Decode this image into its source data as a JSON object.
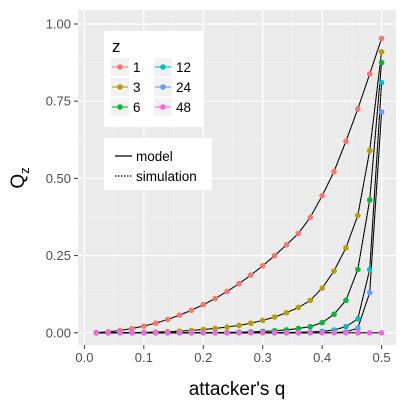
{
  "chart_data": {
    "type": "line",
    "xlabel": "attacker's q",
    "ylabel": "Q",
    "ylabel_subscript": "z",
    "xlim": [
      0.0,
      0.5
    ],
    "ylim": [
      0.0,
      1.0
    ],
    "x_ticks": [
      0.0,
      0.1,
      0.2,
      0.3,
      0.4,
      0.5
    ],
    "x_tick_labels": [
      "0.0",
      "0.1",
      "0.2",
      "0.3",
      "0.4",
      "0.5"
    ],
    "y_ticks": [
      0.0,
      0.25,
      0.5,
      0.75,
      1.0
    ],
    "y_tick_labels": [
      "0.00",
      "0.25",
      "0.50",
      "0.75",
      "1.00"
    ],
    "grid": true,
    "panel_background": "#ebebeb",
    "legend_color": {
      "title": "z",
      "placement": "top-left",
      "entries": [
        "1",
        "3",
        "6",
        "12",
        "24",
        "48"
      ]
    },
    "legend_linetype": {
      "placement": "left",
      "entries": [
        {
          "label": "model",
          "style": "solid"
        },
        {
          "label": "simulation",
          "style": "dotted"
        }
      ]
    },
    "x": [
      0.02,
      0.04,
      0.06,
      0.08,
      0.1,
      0.12,
      0.14,
      0.16,
      0.18,
      0.2,
      0.22,
      0.24,
      0.26,
      0.28,
      0.3,
      0.32,
      0.34,
      0.36,
      0.38,
      0.4,
      0.42,
      0.44,
      0.46,
      0.48,
      0.5
    ],
    "series": [
      {
        "name": "1",
        "color": "#F8766D",
        "values": [
          0.0008,
          0.0033,
          0.0076,
          0.0138,
          0.0216,
          0.0312,
          0.043,
          0.057,
          0.073,
          0.091,
          0.111,
          0.134,
          0.159,
          0.187,
          0.217,
          0.25,
          0.285,
          0.322,
          0.374,
          0.444,
          0.522,
          0.62,
          0.725,
          0.838,
          0.953
        ]
      },
      {
        "name": "3",
        "color": "#B79F00",
        "values": [
          0.0,
          0.0,
          0.0002,
          0.0005,
          0.0012,
          0.0022,
          0.0036,
          0.0054,
          0.0078,
          0.0107,
          0.0143,
          0.0185,
          0.024,
          0.031,
          0.04,
          0.051,
          0.065,
          0.082,
          0.105,
          0.145,
          0.2,
          0.275,
          0.38,
          0.59,
          0.91
        ]
      },
      {
        "name": "6",
        "color": "#00BA38",
        "values": [
          0.0,
          0.0,
          0.0,
          0.0,
          0.0,
          0.0,
          0.0,
          0.0001,
          0.0002,
          0.0004,
          0.0007,
          0.0012,
          0.002,
          0.003,
          0.0045,
          0.0065,
          0.0095,
          0.014,
          0.02,
          0.033,
          0.06,
          0.105,
          0.205,
          0.43,
          0.875
        ]
      },
      {
        "name": "12",
        "color": "#00BFC4",
        "values": [
          0.0,
          0.0,
          0.0,
          0.0,
          0.0,
          0.0,
          0.0,
          0.0,
          0.0,
          0.0,
          0.0,
          0.0,
          0.0001,
          0.0002,
          0.0004,
          0.0006,
          0.001,
          0.0016,
          0.0026,
          0.0045,
          0.009,
          0.02,
          0.045,
          0.205,
          0.81
        ]
      },
      {
        "name": "24",
        "color": "#619CFF",
        "values": [
          0.0,
          0.0,
          0.0,
          0.0,
          0.0,
          0.0,
          0.0,
          0.0,
          0.0,
          0.0,
          0.0,
          0.0,
          0.0,
          0.0,
          0.0,
          0.0,
          0.0,
          0.0,
          0.0001,
          0.0003,
          0.0008,
          0.003,
          0.015,
          0.13,
          0.715
        ]
      },
      {
        "name": "48",
        "color": "#F564E3",
        "values": [
          0.0,
          0.0,
          0.0,
          0.0,
          0.0,
          0.0,
          0.0,
          0.0,
          0.0,
          0.0,
          0.0,
          0.0,
          0.0,
          0.0,
          0.0,
          0.0,
          0.0,
          0.0,
          0.0,
          0.0,
          0.0,
          0.0,
          0.0,
          0.0,
          0.0
        ]
      }
    ]
  }
}
